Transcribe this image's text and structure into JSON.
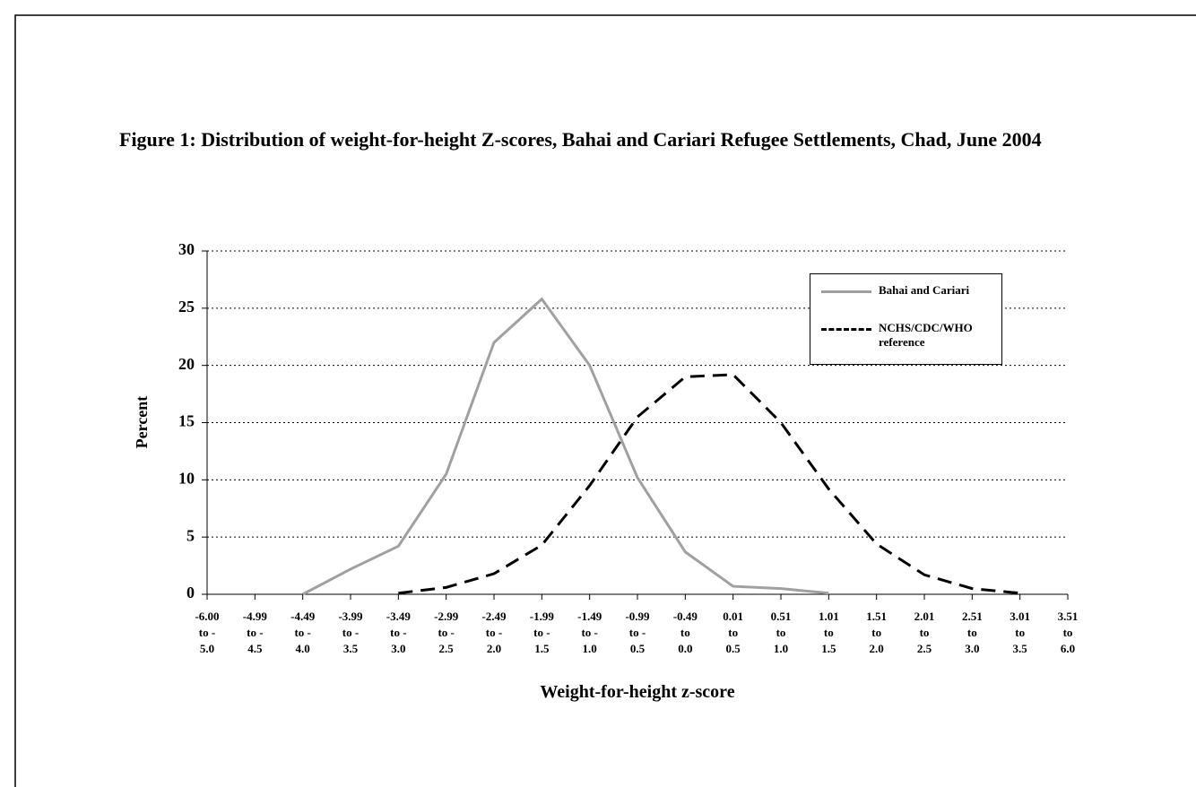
{
  "chart_data": {
    "type": "line",
    "title": "Figure 1: Distribution of weight-for-height Z-scores, Bahai and Cariari Refugee Settlements, Chad, June 2004",
    "xlabel": "Weight-for-height z-score",
    "ylabel": "Percent",
    "categories": [
      "-6.00\nto -\n5.0",
      "-4.99\nto -\n4.5",
      "-4.49\nto -\n4.0",
      "-3.99\nto -\n3.5",
      "-3.49\nto -\n3.0",
      "-2.99\nto -\n2.5",
      "-2.49\nto -\n2.0",
      "-1.99\nto -\n1.5",
      "-1.49\nto -\n1.0",
      "-0.99\nto -\n0.5",
      "-0.49\nto\n0.0",
      "0.01\nto\n0.5",
      "0.51\nto\n1.0",
      "1.01\nto\n1.5",
      "1.51\nto\n2.0",
      "2.01\nto\n2.5",
      "2.51\nto\n3.0",
      "3.01\nto\n3.5",
      "3.51\nto\n6.0"
    ],
    "series": [
      {
        "name": "Bahai and Cariari",
        "color": "#a0a0a0",
        "dash": false,
        "values": [
          null,
          null,
          0,
          2.2,
          4.2,
          10.5,
          22,
          25.8,
          20,
          10.2,
          3.7,
          0.7,
          0.5,
          0.1,
          null,
          null,
          null,
          null,
          null
        ]
      },
      {
        "name": "NCHS/CDC/WHO reference",
        "color": "#000000",
        "dash": true,
        "values": [
          null,
          null,
          null,
          null,
          0.1,
          0.6,
          1.8,
          4.3,
          9.5,
          15.5,
          19.0,
          19.2,
          15.0,
          9.2,
          4.4,
          1.7,
          0.5,
          0.1,
          null
        ]
      }
    ],
    "ylim": [
      0,
      30
    ],
    "yticks": [
      0,
      5,
      10,
      15,
      20,
      25,
      30
    ],
    "grid": true,
    "legend": "upper right"
  }
}
